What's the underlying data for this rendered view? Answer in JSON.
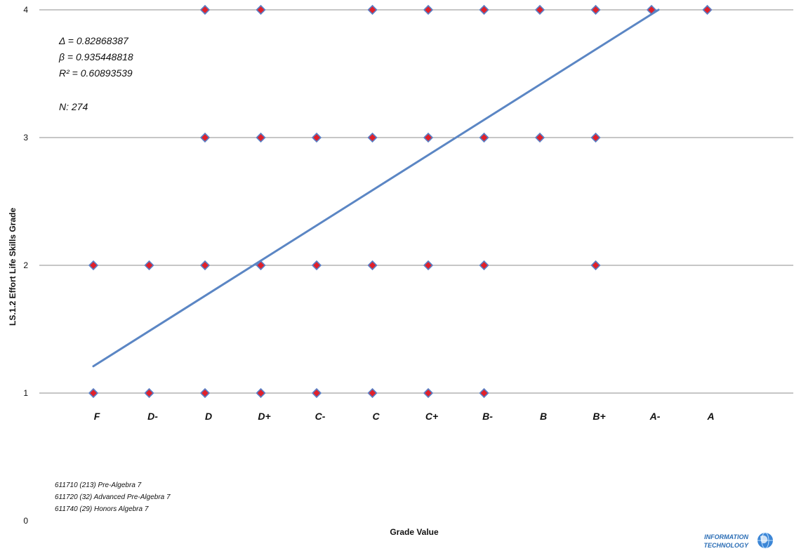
{
  "chart_data": {
    "type": "scatter",
    "title": "",
    "xlabel": "Grade Value",
    "ylabel": "LS.1.2 Effort Life Skills Grade",
    "ylim": [
      0,
      4
    ],
    "yticks": [
      "0",
      "1",
      "2",
      "3",
      "4"
    ],
    "grid": "horizontal",
    "categories": [
      "F",
      "D-",
      "D",
      "D+",
      "C-",
      "C",
      "C+",
      "B-",
      "B",
      "B+",
      "A-",
      "A"
    ],
    "points": [
      {
        "x": "F",
        "y": 1
      },
      {
        "x": "D-",
        "y": 1
      },
      {
        "x": "D",
        "y": 1
      },
      {
        "x": "D+",
        "y": 1
      },
      {
        "x": "C-",
        "y": 1
      },
      {
        "x": "C",
        "y": 1
      },
      {
        "x": "C+",
        "y": 1
      },
      {
        "x": "B-",
        "y": 1
      },
      {
        "x": "F",
        "y": 2
      },
      {
        "x": "D-",
        "y": 2
      },
      {
        "x": "D",
        "y": 2
      },
      {
        "x": "D+",
        "y": 2
      },
      {
        "x": "C-",
        "y": 2
      },
      {
        "x": "C",
        "y": 2
      },
      {
        "x": "C+",
        "y": 2
      },
      {
        "x": "B-",
        "y": 2
      },
      {
        "x": "B+",
        "y": 2
      },
      {
        "x": "D",
        "y": 3
      },
      {
        "x": "D+",
        "y": 3
      },
      {
        "x": "C-",
        "y": 3
      },
      {
        "x": "C",
        "y": 3
      },
      {
        "x": "C+",
        "y": 3
      },
      {
        "x": "B-",
        "y": 3
      },
      {
        "x": "B",
        "y": 3
      },
      {
        "x": "B+",
        "y": 3
      },
      {
        "x": "D",
        "y": 4
      },
      {
        "x": "D+",
        "y": 4
      },
      {
        "x": "C",
        "y": 4
      },
      {
        "x": "C+",
        "y": 4
      },
      {
        "x": "B-",
        "y": 4
      },
      {
        "x": "B",
        "y": 4
      },
      {
        "x": "B+",
        "y": 4
      },
      {
        "x": "A-",
        "y": 4
      },
      {
        "x": "A",
        "y": 4
      }
    ],
    "trendline": {
      "start": {
        "x": "F",
        "y": 1.21
      },
      "end": {
        "x": "A-",
        "y": 4
      }
    },
    "stats": [
      "Δ = 0.82868387",
      "β = 0.935448818",
      "R² = 0.60893539",
      "N:  274"
    ],
    "courses": [
      "611710  (213) Pre-Algebra 7",
      "611720  (32) Advanced Pre-Algebra 7",
      "611740  (29)  Honors Algebra 7"
    ],
    "marker_fill": "#e0202a",
    "marker_stroke": "#5b7fc4",
    "trend_color": "#5b86c4",
    "grid_color": "#8c8c8c"
  },
  "logo": {
    "line1": "INFORMATION",
    "line2": "TECHNOLOGY",
    "icon": "globe-icon"
  }
}
